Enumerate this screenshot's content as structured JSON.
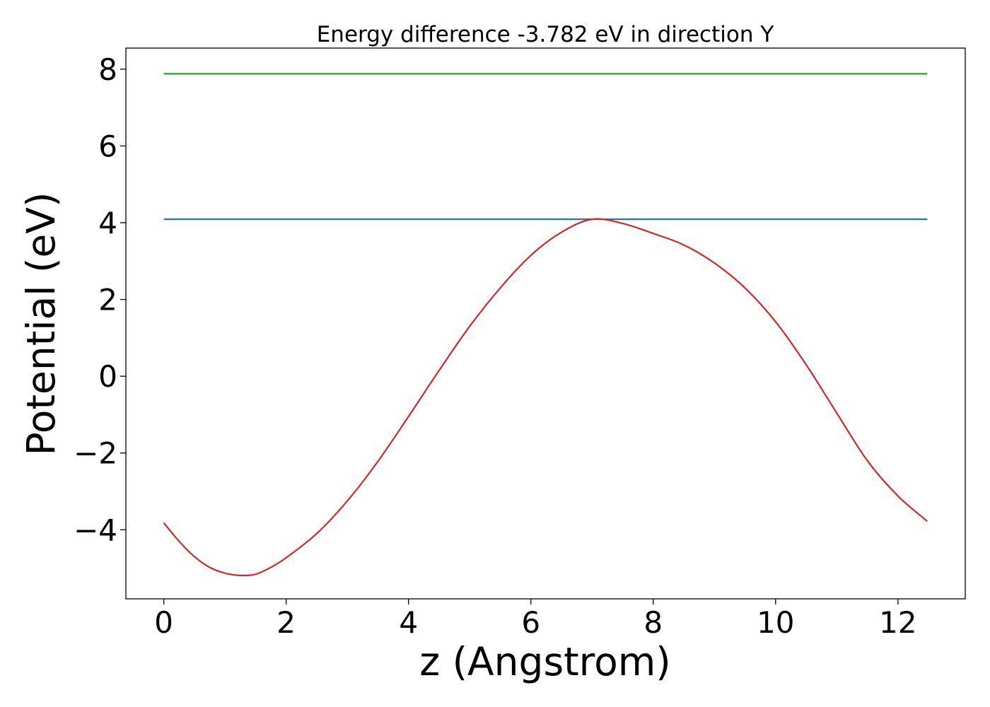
{
  "chart_data": {
    "type": "line",
    "title": "Energy difference -3.782 eV in direction Y",
    "xlabel": "z (Angstrom)",
    "ylabel": "Potential (eV)",
    "xlim": [
      -0.62,
      13.1
    ],
    "ylim": [
      -5.8,
      8.55
    ],
    "xticks": [
      0,
      2,
      4,
      6,
      8,
      10,
      12
    ],
    "xtick_labels": [
      "0",
      "2",
      "4",
      "6",
      "8",
      "10",
      "12"
    ],
    "yticks": [
      8,
      6,
      4,
      2,
      0,
      -2,
      -4
    ],
    "ytick_labels": [
      "8",
      "6",
      "4",
      "2",
      "0",
      "−2",
      "−4"
    ],
    "grid": false,
    "series": [
      {
        "color": "#2ca02c",
        "x": [
          0,
          12.48
        ],
        "y": [
          7.88,
          7.88
        ]
      },
      {
        "color": "#1f77b4",
        "x": [
          0,
          12.48
        ],
        "y": [
          4.09,
          4.09
        ]
      },
      {
        "color": "#d62728",
        "x": [
          0,
          0.25,
          0.5,
          0.75,
          1.0,
          1.25,
          1.5,
          1.75,
          2.0,
          2.5,
          3.0,
          3.5,
          4.0,
          4.5,
          5.0,
          5.5,
          6.0,
          6.5,
          7.0,
          7.5,
          8.0,
          8.5,
          9.0,
          9.5,
          10.0,
          10.5,
          11.0,
          11.5,
          12.0,
          12.48
        ],
        "y": [
          -3.82,
          -4.3,
          -4.7,
          -4.98,
          -5.13,
          -5.19,
          -5.16,
          -4.98,
          -4.73,
          -4.1,
          -3.25,
          -2.22,
          -1.05,
          0.15,
          1.3,
          2.3,
          3.15,
          3.75,
          4.09,
          3.98,
          3.72,
          3.42,
          2.95,
          2.3,
          1.42,
          0.3,
          -0.96,
          -2.2,
          -3.12,
          -3.78
        ]
      }
    ]
  }
}
